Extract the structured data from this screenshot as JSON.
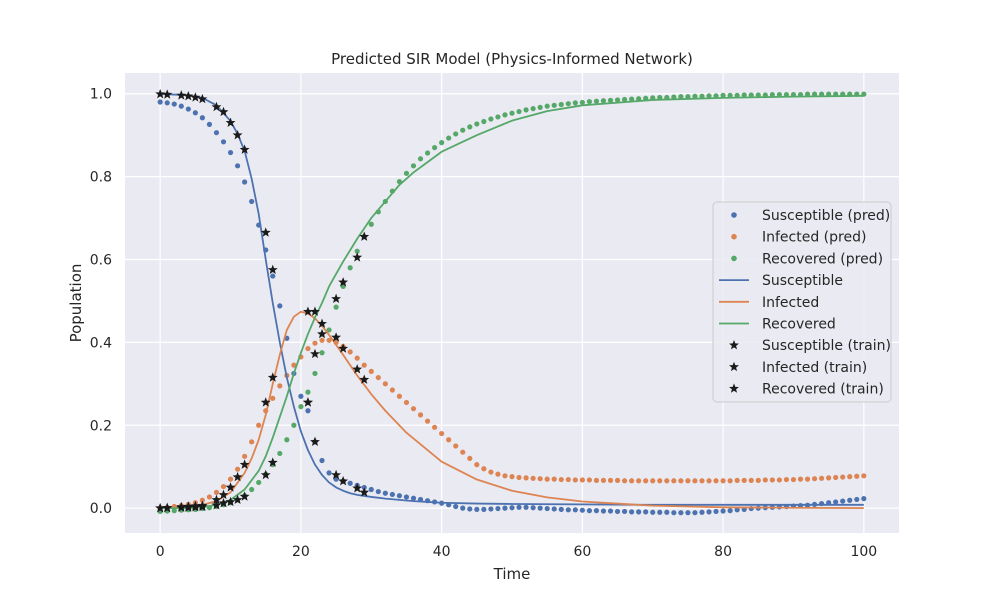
{
  "chart_data": {
    "type": "line",
    "title": "Predicted SIR Model (Physics-Informed Network)",
    "xlabel": "Time",
    "ylabel": "Population",
    "xlim": [
      -5,
      105
    ],
    "ylim": [
      -0.06,
      1.05
    ],
    "xticks": [
      0,
      20,
      40,
      60,
      80,
      100
    ],
    "yticks": [
      0.0,
      0.2,
      0.4,
      0.6,
      0.8,
      1.0
    ],
    "xtick_labels": [
      "0",
      "20",
      "40",
      "60",
      "80",
      "100"
    ],
    "ytick_labels": [
      "0.0",
      "0.2",
      "0.4",
      "0.6",
      "0.8",
      "1.0"
    ],
    "grid": true,
    "background": "#eaeaf2",
    "legend_placement": "center-right",
    "colors": {
      "susceptible": "#4c72b0",
      "infected": "#dd8452",
      "recovered": "#55a868",
      "train": "#1a1a1a"
    },
    "pred_series": [
      {
        "name": "Susceptible (pred)",
        "color": "#4c72b0",
        "x": [
          0,
          1,
          2,
          3,
          4,
          5,
          6,
          7,
          8,
          9,
          10,
          11,
          12,
          13,
          14,
          15,
          16,
          17,
          18,
          19,
          20,
          21,
          22,
          23,
          24,
          25,
          26,
          27,
          28,
          29,
          30,
          31,
          32,
          33,
          34,
          35,
          36,
          37,
          38,
          39,
          40,
          41,
          42,
          43,
          44,
          45,
          46,
          47,
          48,
          49,
          50,
          51,
          52,
          53,
          54,
          55,
          56,
          57,
          58,
          59,
          60,
          61,
          62,
          63,
          64,
          65,
          66,
          67,
          68,
          69,
          70,
          71,
          72,
          73,
          74,
          75,
          76,
          77,
          78,
          79,
          80,
          81,
          82,
          83,
          84,
          85,
          86,
          87,
          88,
          89,
          90,
          91,
          92,
          93,
          94,
          95,
          96,
          97,
          98,
          99,
          100
        ],
        "y": [
          0.98,
          0.978,
          0.975,
          0.97,
          0.963,
          0.954,
          0.942,
          0.926,
          0.906,
          0.884,
          0.858,
          0.826,
          0.787,
          0.74,
          0.683,
          0.623,
          0.56,
          0.488,
          0.41,
          0.325,
          0.27,
          0.235,
          0.16,
          0.115,
          0.085,
          0.07,
          0.065,
          0.06,
          0.055,
          0.05,
          0.045,
          0.04,
          0.036,
          0.033,
          0.03,
          0.027,
          0.024,
          0.021,
          0.018,
          0.015,
          0.012,
          0.008,
          0.004,
          0.0,
          -0.002,
          -0.003,
          -0.003,
          -0.002,
          -0.001,
          0.0,
          0.001,
          0.002,
          0.002,
          0.001,
          0.0,
          -0.001,
          -0.002,
          -0.003,
          -0.004,
          -0.004,
          -0.005,
          -0.006,
          -0.006,
          -0.007,
          -0.007,
          -0.008,
          -0.008,
          -0.009,
          -0.009,
          -0.009,
          -0.01,
          -0.01,
          -0.01,
          -0.011,
          -0.011,
          -0.011,
          -0.011,
          -0.01,
          -0.009,
          -0.008,
          -0.007,
          -0.006,
          -0.004,
          -0.003,
          -0.001,
          0.0,
          0.001,
          0.002,
          0.003,
          0.004,
          0.005,
          0.006,
          0.007,
          0.009,
          0.011,
          0.013,
          0.015,
          0.017,
          0.019,
          0.021,
          0.023
        ]
      },
      {
        "name": "Infected (pred)",
        "color": "#dd8452",
        "x": [
          0,
          1,
          2,
          3,
          4,
          5,
          6,
          7,
          8,
          9,
          10,
          11,
          12,
          13,
          14,
          15,
          16,
          17,
          18,
          19,
          20,
          21,
          22,
          23,
          24,
          25,
          26,
          27,
          28,
          29,
          30,
          31,
          32,
          33,
          34,
          35,
          36,
          37,
          38,
          39,
          40,
          41,
          42,
          43,
          44,
          45,
          46,
          47,
          48,
          49,
          50,
          51,
          52,
          53,
          54,
          55,
          56,
          57,
          58,
          59,
          60,
          61,
          62,
          63,
          64,
          65,
          66,
          67,
          68,
          69,
          70,
          71,
          72,
          73,
          74,
          75,
          76,
          77,
          78,
          79,
          80,
          81,
          82,
          83,
          84,
          85,
          86,
          87,
          88,
          89,
          90,
          91,
          92,
          93,
          94,
          95,
          96,
          97,
          98,
          99,
          100
        ],
        "y": [
          0.0,
          0.002,
          0.004,
          0.006,
          0.009,
          0.013,
          0.019,
          0.027,
          0.038,
          0.052,
          0.07,
          0.094,
          0.125,
          0.16,
          0.2,
          0.235,
          0.265,
          0.295,
          0.32,
          0.345,
          0.365,
          0.385,
          0.398,
          0.405,
          0.405,
          0.4,
          0.39,
          0.377,
          0.362,
          0.345,
          0.33,
          0.315,
          0.3,
          0.285,
          0.27,
          0.255,
          0.24,
          0.225,
          0.21,
          0.195,
          0.18,
          0.165,
          0.15,
          0.135,
          0.12,
          0.105,
          0.095,
          0.087,
          0.082,
          0.078,
          0.076,
          0.074,
          0.073,
          0.072,
          0.071,
          0.07,
          0.07,
          0.069,
          0.069,
          0.068,
          0.068,
          0.068,
          0.067,
          0.067,
          0.067,
          0.067,
          0.066,
          0.066,
          0.066,
          0.066,
          0.066,
          0.066,
          0.066,
          0.066,
          0.066,
          0.066,
          0.066,
          0.066,
          0.066,
          0.066,
          0.066,
          0.066,
          0.067,
          0.067,
          0.067,
          0.067,
          0.068,
          0.068,
          0.068,
          0.069,
          0.069,
          0.07,
          0.07,
          0.071,
          0.072,
          0.073,
          0.074,
          0.075,
          0.076,
          0.077,
          0.078
        ]
      },
      {
        "name": "Recovered (pred)",
        "color": "#55a868",
        "x": [
          0,
          1,
          2,
          3,
          4,
          5,
          6,
          7,
          8,
          9,
          10,
          11,
          12,
          13,
          14,
          15,
          16,
          17,
          18,
          19,
          20,
          21,
          22,
          23,
          24,
          25,
          26,
          27,
          28,
          29,
          30,
          31,
          32,
          33,
          34,
          35,
          36,
          37,
          38,
          39,
          40,
          41,
          42,
          43,
          44,
          45,
          46,
          47,
          48,
          49,
          50,
          51,
          52,
          53,
          54,
          55,
          56,
          57,
          58,
          59,
          60,
          61,
          62,
          63,
          64,
          65,
          66,
          67,
          68,
          69,
          70,
          71,
          72,
          73,
          74,
          75,
          76,
          77,
          78,
          79,
          80,
          81,
          82,
          83,
          84,
          85,
          86,
          87,
          88,
          89,
          90,
          91,
          92,
          93,
          94,
          95,
          96,
          97,
          98,
          99,
          100
        ],
        "y": [
          -0.008,
          -0.007,
          -0.006,
          -0.005,
          -0.004,
          -0.003,
          -0.001,
          0.001,
          0.004,
          0.008,
          0.013,
          0.02,
          0.03,
          0.045,
          0.062,
          0.082,
          0.105,
          0.132,
          0.165,
          0.2,
          0.245,
          0.28,
          0.325,
          0.375,
          0.43,
          0.485,
          0.535,
          0.58,
          0.62,
          0.655,
          0.685,
          0.715,
          0.74,
          0.765,
          0.788,
          0.808,
          0.826,
          0.843,
          0.857,
          0.87,
          0.882,
          0.893,
          0.903,
          0.912,
          0.92,
          0.927,
          0.933,
          0.939,
          0.944,
          0.949,
          0.953,
          0.957,
          0.961,
          0.964,
          0.967,
          0.97,
          0.972,
          0.974,
          0.976,
          0.978,
          0.979,
          0.981,
          0.982,
          0.983,
          0.984,
          0.985,
          0.986,
          0.987,
          0.988,
          0.989,
          0.99,
          0.991,
          0.991,
          0.992,
          0.993,
          0.993,
          0.994,
          0.994,
          0.995,
          0.995,
          0.996,
          0.996,
          0.996,
          0.997,
          0.997,
          0.997,
          0.997,
          0.998,
          0.998,
          0.998,
          0.998,
          0.998,
          0.999,
          0.999,
          0.999,
          0.999,
          0.999,
          0.999,
          0.999,
          0.999,
          0.999
        ]
      }
    ],
    "line_series": [
      {
        "name": "Susceptible",
        "color": "#4c72b0",
        "x": [
          0,
          2,
          4,
          6,
          8,
          10,
          11,
          12,
          13,
          14,
          15,
          16,
          17,
          18,
          19,
          20,
          21,
          22,
          23,
          24,
          25,
          26,
          27,
          28,
          30,
          32,
          34,
          36,
          38,
          40,
          45,
          50,
          60,
          70,
          80,
          90,
          100
        ],
        "y": [
          0.999,
          0.998,
          0.996,
          0.99,
          0.972,
          0.934,
          0.903,
          0.862,
          0.795,
          0.71,
          0.6,
          0.495,
          0.4,
          0.315,
          0.245,
          0.185,
          0.14,
          0.105,
          0.08,
          0.062,
          0.05,
          0.042,
          0.036,
          0.032,
          0.027,
          0.023,
          0.02,
          0.017,
          0.015,
          0.013,
          0.011,
          0.01,
          0.009,
          0.008,
          0.008,
          0.008,
          0.008
        ]
      },
      {
        "name": "Infected",
        "color": "#dd8452",
        "x": [
          0,
          2,
          4,
          6,
          8,
          10,
          12,
          13,
          14,
          15,
          16,
          17,
          18,
          19,
          20,
          21,
          22,
          23,
          24,
          25,
          26,
          28,
          30,
          32,
          35,
          40,
          45,
          50,
          55,
          60,
          70,
          80,
          90,
          100
        ],
        "y": [
          0.001,
          0.002,
          0.004,
          0.008,
          0.017,
          0.038,
          0.085,
          0.12,
          0.165,
          0.225,
          0.3,
          0.37,
          0.43,
          0.462,
          0.474,
          0.47,
          0.458,
          0.44,
          0.418,
          0.394,
          0.37,
          0.32,
          0.275,
          0.235,
          0.182,
          0.112,
          0.069,
          0.042,
          0.026,
          0.016,
          0.006,
          0.002,
          0.001,
          0.0
        ]
      },
      {
        "name": "Recovered",
        "color": "#55a868",
        "x": [
          0,
          2,
          4,
          6,
          8,
          10,
          12,
          14,
          15,
          16,
          17,
          18,
          19,
          20,
          21,
          22,
          23,
          24,
          25,
          26,
          28,
          30,
          32,
          34,
          36,
          38,
          40,
          45,
          50,
          55,
          60,
          70,
          80,
          90,
          100
        ],
        "y": [
          0.0,
          0.0,
          0.0,
          0.002,
          0.008,
          0.02,
          0.045,
          0.09,
          0.125,
          0.17,
          0.22,
          0.27,
          0.325,
          0.375,
          0.42,
          0.46,
          0.495,
          0.535,
          0.565,
          0.595,
          0.65,
          0.7,
          0.74,
          0.78,
          0.81,
          0.835,
          0.86,
          0.9,
          0.935,
          0.958,
          0.972,
          0.985,
          0.99,
          0.993,
          0.995
        ]
      }
    ],
    "train_series": [
      {
        "name": "Susceptible (train)",
        "x": [
          0,
          1,
          3,
          4,
          5,
          6,
          8,
          9,
          10,
          11,
          12,
          15,
          16,
          21,
          22,
          25,
          26,
          28,
          29
        ],
        "y": [
          0.999,
          0.998,
          0.996,
          0.994,
          0.991,
          0.987,
          0.968,
          0.956,
          0.93,
          0.9,
          0.865,
          0.665,
          0.575,
          0.255,
          0.16,
          0.08,
          0.065,
          0.048,
          0.038
        ]
      },
      {
        "name": "Infected (train)",
        "x": [
          0,
          1,
          3,
          4,
          5,
          6,
          8,
          9,
          10,
          11,
          12,
          15,
          16,
          21,
          22,
          23,
          25,
          26,
          28,
          29
        ],
        "y": [
          0.0,
          0.001,
          0.003,
          0.004,
          0.005,
          0.006,
          0.02,
          0.032,
          0.05,
          0.075,
          0.105,
          0.255,
          0.315,
          0.474,
          0.474,
          0.445,
          0.412,
          0.385,
          0.335,
          0.31
        ]
      },
      {
        "name": "Recovered (train)",
        "x": [
          0,
          1,
          3,
          4,
          5,
          6,
          8,
          9,
          10,
          11,
          12,
          15,
          16,
          21,
          22,
          23,
          25,
          26,
          28,
          29
        ],
        "y": [
          0.0,
          0.0,
          0.001,
          0.001,
          0.002,
          0.003,
          0.007,
          0.012,
          0.015,
          0.02,
          0.028,
          0.08,
          0.11,
          0.255,
          0.372,
          0.42,
          0.505,
          0.545,
          0.605,
          0.655
        ]
      }
    ],
    "legend": [
      {
        "label": "Susceptible (pred)",
        "kind": "dot",
        "color": "#4c72b0"
      },
      {
        "label": "Infected (pred)",
        "kind": "dot",
        "color": "#dd8452"
      },
      {
        "label": "Recovered (pred)",
        "kind": "dot",
        "color": "#55a868"
      },
      {
        "label": "Susceptible",
        "kind": "line",
        "color": "#4c72b0"
      },
      {
        "label": "Infected",
        "kind": "line",
        "color": "#dd8452"
      },
      {
        "label": "Recovered",
        "kind": "line",
        "color": "#55a868"
      },
      {
        "label": "Susceptible (train)",
        "kind": "star",
        "color": "#1a1a1a"
      },
      {
        "label": "Infected (train)",
        "kind": "star",
        "color": "#1a1a1a"
      },
      {
        "label": "Recovered (train)",
        "kind": "star",
        "color": "#1a1a1a"
      }
    ]
  }
}
